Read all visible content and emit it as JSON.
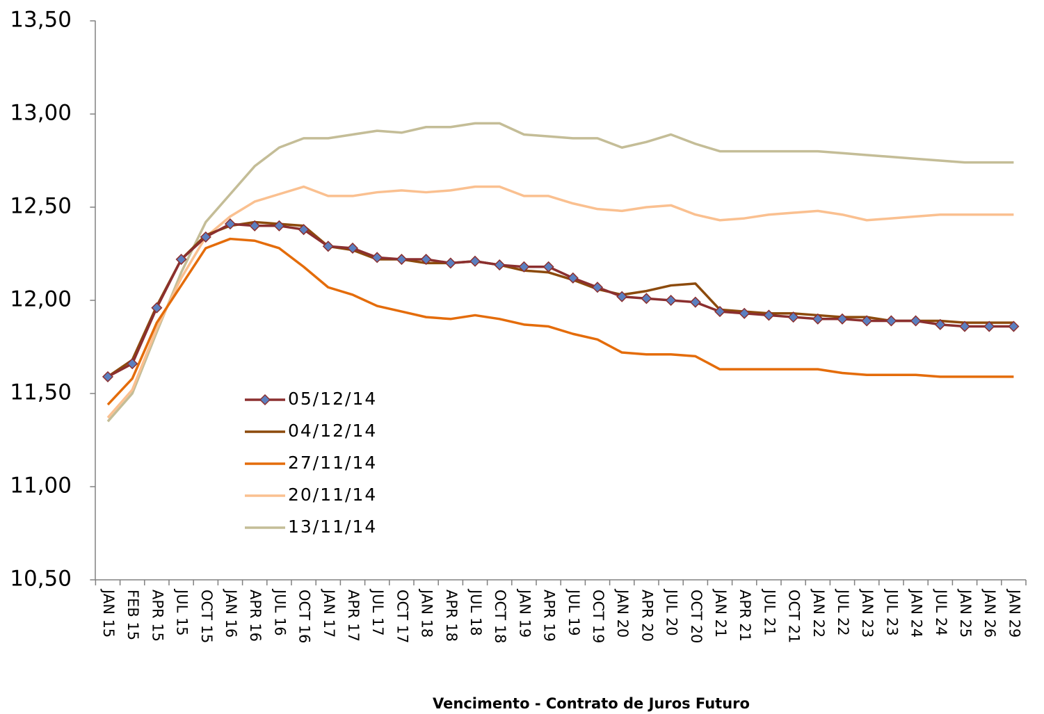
{
  "chart_data": {
    "type": "line",
    "x_axis_label": "Vencimento - Contrato de Juros Futuro",
    "categories": [
      "JAN 15",
      "FEB 15",
      "APR 15",
      "JUL 15",
      "OCT 15",
      "JAN 16",
      "APR 16",
      "JUL 16",
      "OCT 16",
      "JAN 17",
      "APR 17",
      "JUL 17",
      "OCT 17",
      "JAN 18",
      "APR 18",
      "JUL 18",
      "OCT 18",
      "JAN 19",
      "APR 19",
      "JUL 19",
      "OCT 19",
      "JAN 20",
      "APR 20",
      "JUL 20",
      "OCT 20",
      "JAN 21",
      "APR 21",
      "JUL 21",
      "OCT 21",
      "JAN 22",
      "JUL 22",
      "JAN 23",
      "JUL 23",
      "JAN 24",
      "JUL 24",
      "JAN 25",
      "JAN 26",
      "JAN 29"
    ],
    "series": [
      {
        "name": "05/12/14",
        "color": "#8b2f2f",
        "marker": "diamond",
        "marker_color": "#5b7fbf",
        "values": [
          11.59,
          11.66,
          11.96,
          12.22,
          12.34,
          12.41,
          12.4,
          12.4,
          12.38,
          12.29,
          12.28,
          12.23,
          12.22,
          12.22,
          12.2,
          12.21,
          12.19,
          12.18,
          12.18,
          12.12,
          12.07,
          12.02,
          12.01,
          12.0,
          11.99,
          11.94,
          11.93,
          11.92,
          11.91,
          11.9,
          11.9,
          11.89,
          11.89,
          11.89,
          11.87,
          11.86,
          11.86,
          11.86
        ]
      },
      {
        "name": "04/12/14",
        "color": "#8c4a0c",
        "values": [
          11.59,
          11.68,
          11.97,
          12.22,
          12.35,
          12.4,
          12.42,
          12.41,
          12.4,
          12.29,
          12.27,
          12.22,
          12.22,
          12.2,
          12.2,
          12.21,
          12.19,
          12.16,
          12.15,
          12.11,
          12.06,
          12.03,
          12.05,
          12.08,
          12.09,
          11.95,
          11.94,
          11.93,
          11.93,
          11.92,
          11.91,
          11.91,
          11.89,
          11.89,
          11.89,
          11.88,
          11.88,
          11.88
        ]
      },
      {
        "name": "27/11/14",
        "color": "#e46c0a",
        "values": [
          11.44,
          11.58,
          11.88,
          12.08,
          12.28,
          12.33,
          12.32,
          12.28,
          12.18,
          12.07,
          12.03,
          11.97,
          11.94,
          11.91,
          11.9,
          11.92,
          11.9,
          11.87,
          11.86,
          11.82,
          11.79,
          11.72,
          11.71,
          11.71,
          11.7,
          11.63,
          11.63,
          11.63,
          11.63,
          11.63,
          11.61,
          11.6,
          11.6,
          11.6,
          11.59,
          11.59,
          11.59,
          11.59
        ]
      },
      {
        "name": "20/11/14",
        "color": "#fac090",
        "values": [
          11.37,
          11.52,
          11.85,
          12.12,
          12.34,
          12.45,
          12.53,
          12.57,
          12.61,
          12.56,
          12.56,
          12.58,
          12.59,
          12.58,
          12.59,
          12.61,
          12.61,
          12.56,
          12.56,
          12.52,
          12.49,
          12.48,
          12.5,
          12.51,
          12.46,
          12.43,
          12.44,
          12.46,
          12.47,
          12.48,
          12.46,
          12.43,
          12.44,
          12.45,
          12.46,
          12.46,
          12.46,
          12.46
        ]
      },
      {
        "name": "13/11/14",
        "color": "#c4bd97",
        "values": [
          11.35,
          11.5,
          11.83,
          12.15,
          12.42,
          12.57,
          12.72,
          12.82,
          12.87,
          12.87,
          12.89,
          12.91,
          12.9,
          12.93,
          12.93,
          12.95,
          12.95,
          12.89,
          12.88,
          12.87,
          12.87,
          12.82,
          12.85,
          12.89,
          12.84,
          12.8,
          12.8,
          12.8,
          12.8,
          12.8,
          12.79,
          12.78,
          12.77,
          12.76,
          12.75,
          12.74,
          12.74,
          12.74
        ]
      }
    ],
    "ylim": [
      10.5,
      13.5
    ],
    "yticks": [
      {
        "value": 10.5,
        "label": "10,50"
      },
      {
        "value": 11,
        "label": "11,00"
      },
      {
        "value": 11.5,
        "label": "11,50"
      },
      {
        "value": 12,
        "label": "12,00"
      },
      {
        "value": 12.5,
        "label": "12,50"
      },
      {
        "value": 13,
        "label": "13,00"
      },
      {
        "value": 13.5,
        "label": "13,50"
      }
    ],
    "grid": false
  }
}
